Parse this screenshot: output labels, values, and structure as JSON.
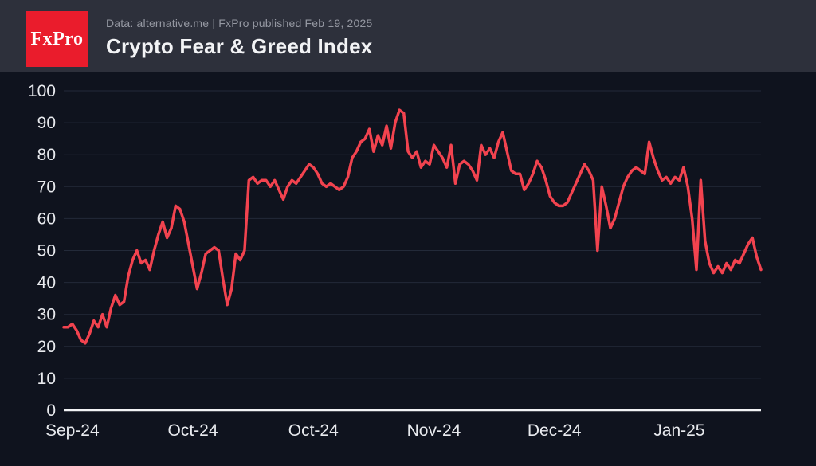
{
  "header": {
    "logo_text": "FxPro",
    "subtitle": "Data: alternative.me | FxPro published Feb 19, 2025",
    "title": "Crypto Fear & Greed Index"
  },
  "colors": {
    "header_bg": "#2d303b",
    "chart_bg": "#0f131e",
    "logo_red": "#ea1c2c",
    "line_red": "#f2434f",
    "gridline": "#232a39",
    "axis_line": "#f2f3f5",
    "tick_text": "#e8eaee",
    "subtitle_text": "#9598a2",
    "title_text": "#f2f3f5"
  },
  "chart_data": {
    "type": "line",
    "title": "Crypto Fear & Greed Index",
    "xlabel": "",
    "ylabel": "",
    "ylim": [
      0,
      100
    ],
    "y_ticks": [
      0,
      10,
      20,
      30,
      40,
      50,
      60,
      70,
      80,
      90,
      100
    ],
    "grid": "horizontal gridlines on, white baseline at 0",
    "legend": "none",
    "x_tick_labels": [
      "Sep-24",
      "Oct-24",
      "Oct-24",
      "Nov-24",
      "Dec-24",
      "Jan-25"
    ],
    "x_tick_indices": [
      2,
      30,
      58,
      86,
      114,
      143
    ],
    "x_range_note": "daily values, early Sep 2024 through mid Feb 2025",
    "series": [
      {
        "name": "Crypto Fear & Greed Index",
        "values": [
          26,
          26,
          27,
          25,
          22,
          21,
          24,
          28,
          26,
          30,
          26,
          32,
          36,
          33,
          34,
          42,
          47,
          50,
          46,
          47,
          44,
          50,
          55,
          59,
          54,
          57,
          64,
          63,
          59,
          52,
          45,
          38,
          43,
          49,
          50,
          51,
          50,
          41,
          33,
          38,
          49,
          47,
          50,
          72,
          73,
          71,
          72,
          72,
          70,
          72,
          69,
          66,
          70,
          72,
          71,
          73,
          75,
          77,
          76,
          74,
          71,
          70,
          71,
          70,
          69,
          70,
          73,
          79,
          81,
          84,
          85,
          88,
          81,
          86,
          83,
          89,
          82,
          90,
          94,
          93,
          81,
          79,
          81,
          76,
          78,
          77,
          83,
          81,
          79,
          76,
          83,
          71,
          77,
          78,
          77,
          75,
          72,
          83,
          80,
          82,
          79,
          84,
          87,
          81,
          75,
          74,
          74,
          69,
          71,
          74,
          78,
          76,
          72,
          67,
          65,
          64,
          64,
          65,
          68,
          71,
          74,
          77,
          75,
          72,
          50,
          70,
          64,
          57,
          60,
          65,
          70,
          73,
          75,
          76,
          75,
          74,
          84,
          79,
          75,
          72,
          73,
          71,
          73,
          72,
          76,
          70,
          60,
          44,
          72,
          53,
          46,
          43,
          45,
          43,
          46,
          44,
          47,
          46,
          49,
          52,
          54,
          48,
          44
        ]
      }
    ]
  }
}
